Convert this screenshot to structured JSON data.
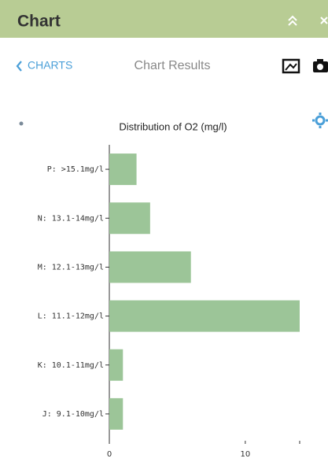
{
  "header": {
    "title": "Chart"
  },
  "nav": {
    "back": "CHARTS",
    "title": "Chart Results"
  },
  "chart_data": {
    "type": "hbar",
    "title": "Distribution of O2 (mg/l)",
    "categories": [
      "P: >15.1mg/l",
      "N: 13.1-14mg/l",
      "M: 12.1-13mg/l",
      "L: 11.1-12mg/l",
      "K: 10.1-11mg/l",
      "J: 9.1-10mg/l"
    ],
    "values": [
      2,
      3,
      6,
      14,
      1,
      1
    ],
    "color": "#9cc598",
    "xlim": [
      0,
      14
    ],
    "xticks": [
      0,
      10
    ]
  }
}
